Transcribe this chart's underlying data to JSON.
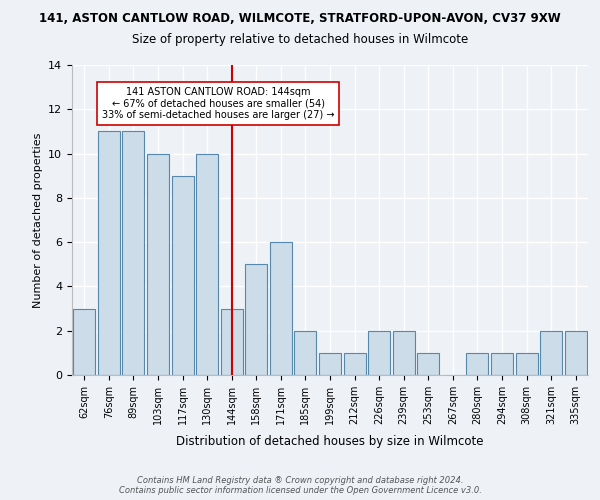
{
  "title1": "141, ASTON CANTLOW ROAD, WILMCOTE, STRATFORD-UPON-AVON, CV37 9XW",
  "title2": "Size of property relative to detached houses in Wilmcote",
  "xlabel": "Distribution of detached houses by size in Wilmcote",
  "ylabel": "Number of detached properties",
  "categories": [
    "62sqm",
    "76sqm",
    "89sqm",
    "103sqm",
    "117sqm",
    "130sqm",
    "144sqm",
    "158sqm",
    "171sqm",
    "185sqm",
    "199sqm",
    "212sqm",
    "226sqm",
    "239sqm",
    "253sqm",
    "267sqm",
    "280sqm",
    "294sqm",
    "308sqm",
    "321sqm",
    "335sqm"
  ],
  "values": [
    3,
    11,
    11,
    10,
    9,
    10,
    3,
    5,
    6,
    2,
    1,
    1,
    2,
    2,
    1,
    0,
    1,
    1,
    1,
    2,
    2
  ],
  "highlight_index": 6,
  "bar_color": "#ccdce8",
  "bar_edge_color": "#5588aa",
  "highlight_line_color": "#cc0000",
  "annotation_text": "141 ASTON CANTLOW ROAD: 144sqm\n← 67% of detached houses are smaller (54)\n33% of semi-detached houses are larger (27) →",
  "annotation_box_color": "white",
  "annotation_box_edge_color": "#cc0000",
  "ylim": [
    0,
    14
  ],
  "yticks": [
    0,
    2,
    4,
    6,
    8,
    10,
    12,
    14
  ],
  "footer": "Contains HM Land Registry data ® Crown copyright and database right 2024.\nContains public sector information licensed under the Open Government Licence v3.0.",
  "bg_color": "#eef2f7",
  "plot_bg_color": "#eef2f7"
}
